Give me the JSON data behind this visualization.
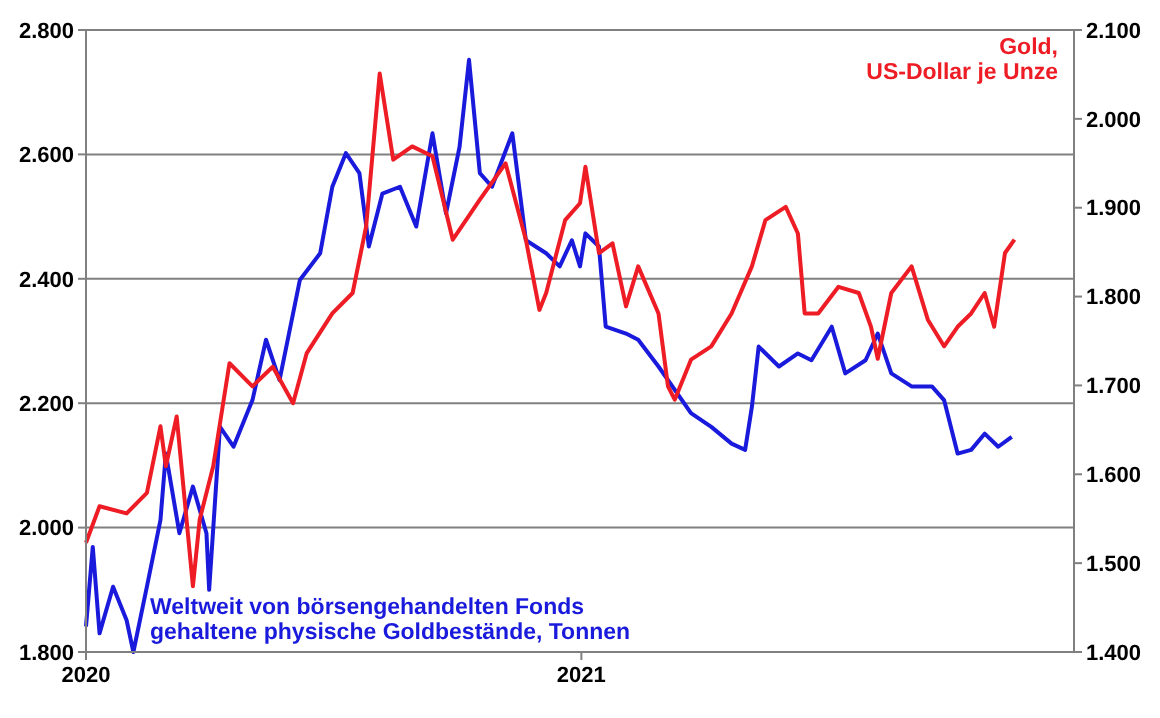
{
  "chart_data": {
    "type": "line",
    "xlim": [
      "2020-01-01",
      "2021-12-31"
    ],
    "xticks": [
      {
        "value": "2020-01-01",
        "label": "2020"
      },
      {
        "value": "2021-01-01",
        "label": "2021"
      }
    ],
    "ylim": [
      1800,
      2800
    ],
    "yticks": [
      {
        "value": 1800,
        "label": "1.800"
      },
      {
        "value": 2000,
        "label": "2.000"
      },
      {
        "value": 2200,
        "label": "2.200"
      },
      {
        "value": 2400,
        "label": "2.400"
      },
      {
        "value": 2600,
        "label": "2.600"
      },
      {
        "value": 2800,
        "label": "2.800"
      }
    ],
    "y2lim": [
      1400,
      2100
    ],
    "y2ticks": [
      {
        "value": 1400,
        "label": "1.400"
      },
      {
        "value": 1500,
        "label": "1.500"
      },
      {
        "value": 1600,
        "label": "1.600"
      },
      {
        "value": 1700,
        "label": "1.700"
      },
      {
        "value": 1800,
        "label": "1.800"
      },
      {
        "value": 1900,
        "label": "1.900"
      },
      {
        "value": 2000,
        "label": "2.000"
      },
      {
        "value": 2100,
        "label": "2.100"
      }
    ],
    "grid": "y",
    "marker": "none",
    "line_style": "solid",
    "series": [
      {
        "name": "Weltweit von börsengehandelten Fonds\ngehaltene physische Goldbestände, Tonnen",
        "color": "#1a1adc",
        "axis": "y",
        "x": [
          "2020-01-01",
          "2020-01-06",
          "2020-01-11",
          "2020-01-21",
          "2020-01-31",
          "2020-02-05",
          "2020-02-15",
          "2020-02-25",
          "2020-02-29",
          "2020-03-10",
          "2020-03-20",
          "2020-03-30",
          "2020-04-01",
          "2020-04-09",
          "2020-04-19",
          "2020-05-03",
          "2020-05-13",
          "2020-05-23",
          "2020-06-07",
          "2020-06-22",
          "2020-07-01",
          "2020-07-11",
          "2020-07-21",
          "2020-07-28",
          "2020-08-07",
          "2020-08-20",
          "2020-09-01",
          "2020-09-13",
          "2020-09-23",
          "2020-10-03",
          "2020-10-10",
          "2020-10-18",
          "2020-10-27",
          "2020-11-11",
          "2020-11-21",
          "2020-12-06",
          "2020-12-16",
          "2020-12-25",
          "2020-12-31",
          "2021-01-04",
          "2021-01-14",
          "2021-01-19",
          "2021-02-03",
          "2021-02-12",
          "2021-02-27",
          "2021-03-23",
          "2021-04-07",
          "2021-04-22",
          "2021-05-02",
          "2021-05-07",
          "2021-05-12",
          "2021-05-27",
          "2021-06-10",
          "2021-06-20",
          "2021-07-05",
          "2021-07-15",
          "2021-07-30",
          "2021-08-08",
          "2021-08-18",
          "2021-09-02",
          "2021-09-17",
          "2021-09-26",
          "2021-10-06",
          "2021-10-16",
          "2021-10-26",
          "2021-11-05",
          "2021-11-15"
        ],
        "values": [
          1841,
          1969,
          1830,
          1905,
          1851,
          1800,
          1905,
          2012,
          2119,
          1991,
          2066,
          1991,
          1900,
          2162,
          2130,
          2205,
          2302,
          2237,
          2398,
          2441,
          2548,
          2602,
          2570,
          2452,
          2537,
          2548,
          2484,
          2634,
          2505,
          2612,
          2752,
          2570,
          2548,
          2634,
          2462,
          2441,
          2420,
          2462,
          2420,
          2473,
          2452,
          2323,
          2312,
          2302,
          2259,
          2184,
          2162,
          2135,
          2125,
          2194,
          2291,
          2259,
          2280,
          2269,
          2323,
          2248,
          2269,
          2312,
          2248,
          2227,
          2227,
          2205,
          2119,
          2125,
          2151,
          2130,
          2146
        ]
      },
      {
        "name": "Gold,\nUS-Dollar je Unze",
        "color": "#ee1c25",
        "axis": "y2",
        "x": [
          "2020-01-01",
          "2020-01-11",
          "2020-01-31",
          "2020-02-15",
          "2020-02-25",
          "2020-02-29",
          "2020-03-08",
          "2020-03-20",
          "2020-03-25",
          "2020-04-04",
          "2020-04-16",
          "2020-05-03",
          "2020-05-18",
          "2020-06-02",
          "2020-06-12",
          "2020-07-01",
          "2020-07-16",
          "2020-07-26",
          "2020-08-05",
          "2020-08-15",
          "2020-08-29",
          "2020-09-13",
          "2020-09-28",
          "2020-10-18",
          "2020-11-06",
          "2020-11-21",
          "2020-12-01",
          "2020-12-06",
          "2020-12-20",
          "2020-12-31",
          "2021-01-04",
          "2021-01-14",
          "2021-01-24",
          "2021-02-03",
          "2021-02-12",
          "2021-02-27",
          "2021-03-06",
          "2021-03-11",
          "2021-03-23",
          "2021-04-07",
          "2021-04-22",
          "2021-05-07",
          "2021-05-17",
          "2021-06-01",
          "2021-06-10",
          "2021-06-15",
          "2021-06-25",
          "2021-07-10",
          "2021-07-25",
          "2021-08-03",
          "2021-08-08",
          "2021-08-18",
          "2021-09-02",
          "2021-09-14",
          "2021-09-26",
          "2021-10-06",
          "2021-10-16",
          "2021-10-26",
          "2021-11-02",
          "2021-11-10",
          "2021-11-17"
        ],
        "values": [
          1523,
          1564,
          1556,
          1579,
          1654,
          1609,
          1665,
          1474,
          1549,
          1609,
          1725,
          1699,
          1721,
          1680,
          1736,
          1781,
          1804,
          1879,
          2051,
          1954,
          1969,
          1958,
          1864,
          1909,
          1950,
          1864,
          1785,
          1804,
          1886,
          1905,
          1946,
          1849,
          1860,
          1789,
          1834,
          1781,
          1699,
          1684,
          1729,
          1744,
          1781,
          1834,
          1886,
          1901,
          1871,
          1781,
          1781,
          1811,
          1804,
          1766,
          1730,
          1804,
          1834,
          1774,
          1744,
          1766,
          1781,
          1804,
          1766,
          1849,
          1864
        ]
      }
    ]
  }
}
